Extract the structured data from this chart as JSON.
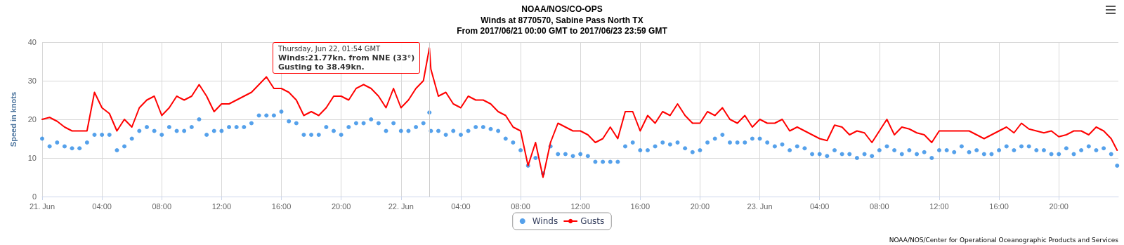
{
  "chart_data": {
    "type": "line",
    "title": "NOAA/NOS/CO-OPS",
    "subtitle": "Winds at 8770570, Sabine Pass North TX\nFrom 2017/06/21 00:00 GMT to 2017/06/23 23:59 GMT",
    "ylabel": "Speed in knots",
    "x": [
      "2017-06-21T00:00",
      "2017-06-21T00:30",
      "2017-06-21T01:00",
      "2017-06-21T01:30",
      "2017-06-21T02:00",
      "2017-06-21T02:30",
      "2017-06-21T03:00",
      "2017-06-21T03:30",
      "2017-06-21T04:00",
      "2017-06-21T04:30",
      "2017-06-21T05:00",
      "2017-06-21T05:30",
      "2017-06-21T06:00",
      "2017-06-21T06:30",
      "2017-06-21T07:00",
      "2017-06-21T07:30",
      "2017-06-21T08:00",
      "2017-06-21T08:30",
      "2017-06-21T09:00",
      "2017-06-21T09:30",
      "2017-06-21T10:00",
      "2017-06-21T10:30",
      "2017-06-21T11:00",
      "2017-06-21T11:30",
      "2017-06-21T12:00",
      "2017-06-21T12:30",
      "2017-06-21T13:00",
      "2017-06-21T13:30",
      "2017-06-21T14:00",
      "2017-06-21T14:30",
      "2017-06-21T15:00",
      "2017-06-21T15:30",
      "2017-06-21T16:00",
      "2017-06-21T16:30",
      "2017-06-21T17:00",
      "2017-06-21T17:30",
      "2017-06-21T18:00",
      "2017-06-21T18:30",
      "2017-06-21T19:00",
      "2017-06-21T19:30",
      "2017-06-21T20:00",
      "2017-06-21T20:30",
      "2017-06-21T21:00",
      "2017-06-21T21:30",
      "2017-06-21T22:00",
      "2017-06-21T22:30",
      "2017-06-21T23:00",
      "2017-06-21T23:30",
      "2017-06-22T00:00",
      "2017-06-22T00:30",
      "2017-06-22T01:00",
      "2017-06-22T01:30",
      "2017-06-22T01:54",
      "2017-06-22T02:00",
      "2017-06-22T02:30",
      "2017-06-22T03:00",
      "2017-06-22T03:30",
      "2017-06-22T04:00",
      "2017-06-22T04:30",
      "2017-06-22T05:00",
      "2017-06-22T05:30",
      "2017-06-22T06:00",
      "2017-06-22T06:30",
      "2017-06-22T07:00",
      "2017-06-22T07:30",
      "2017-06-22T08:00",
      "2017-06-22T08:30",
      "2017-06-22T09:00",
      "2017-06-22T09:30",
      "2017-06-22T10:00",
      "2017-06-22T10:30",
      "2017-06-22T11:00",
      "2017-06-22T11:30",
      "2017-06-22T12:00",
      "2017-06-22T12:30",
      "2017-06-22T13:00",
      "2017-06-22T13:30",
      "2017-06-22T14:00",
      "2017-06-22T14:30",
      "2017-06-22T15:00",
      "2017-06-22T15:30",
      "2017-06-22T16:00",
      "2017-06-22T16:30",
      "2017-06-22T17:00",
      "2017-06-22T17:30",
      "2017-06-22T18:00",
      "2017-06-22T18:30",
      "2017-06-22T19:00",
      "2017-06-22T19:30",
      "2017-06-22T20:00",
      "2017-06-22T20:30",
      "2017-06-22T21:00",
      "2017-06-22T21:30",
      "2017-06-22T22:00",
      "2017-06-22T22:30",
      "2017-06-22T23:00",
      "2017-06-22T23:30",
      "2017-06-23T00:00",
      "2017-06-23T00:30",
      "2017-06-23T01:00",
      "2017-06-23T01:30",
      "2017-06-23T02:00",
      "2017-06-23T02:30",
      "2017-06-23T03:00",
      "2017-06-23T03:30",
      "2017-06-23T04:00",
      "2017-06-23T04:30",
      "2017-06-23T05:00",
      "2017-06-23T05:30",
      "2017-06-23T06:00",
      "2017-06-23T06:30",
      "2017-06-23T07:00",
      "2017-06-23T07:30",
      "2017-06-23T08:00",
      "2017-06-23T08:30",
      "2017-06-23T09:00",
      "2017-06-23T09:30",
      "2017-06-23T10:00",
      "2017-06-23T10:30",
      "2017-06-23T11:00",
      "2017-06-23T11:30",
      "2017-06-23T12:00",
      "2017-06-23T12:30",
      "2017-06-23T13:00",
      "2017-06-23T13:30",
      "2017-06-23T14:00",
      "2017-06-23T14:30",
      "2017-06-23T15:00",
      "2017-06-23T15:30",
      "2017-06-23T16:00",
      "2017-06-23T16:30",
      "2017-06-23T17:00",
      "2017-06-23T17:30",
      "2017-06-23T18:00",
      "2017-06-23T18:30",
      "2017-06-23T19:00",
      "2017-06-23T19:30",
      "2017-06-23T20:00",
      "2017-06-23T20:30",
      "2017-06-23T21:00",
      "2017-06-23T21:30",
      "2017-06-23T22:00",
      "2017-06-23T22:30",
      "2017-06-23T23:00",
      "2017-06-23T23:30",
      "2017-06-23T23:54"
    ],
    "series": [
      {
        "name": "Winds",
        "type": "scatter",
        "marker": "circle",
        "color": "#2b8ae6",
        "values": [
          15,
          13,
          14,
          13,
          12.5,
          12.5,
          14,
          16,
          16,
          16,
          12,
          13,
          15,
          17,
          18,
          17,
          16,
          18,
          17,
          17,
          18,
          20,
          16,
          17,
          17,
          18,
          18,
          18,
          19,
          21,
          21,
          21,
          22,
          19.5,
          19,
          16,
          16,
          16,
          18,
          17,
          16,
          18,
          19,
          19,
          20,
          19,
          17,
          19,
          17,
          17,
          18,
          19,
          21.77,
          17,
          17,
          16,
          17,
          16,
          17,
          18,
          18,
          17.5,
          17,
          15,
          14,
          12,
          8,
          10,
          6,
          13,
          11,
          11,
          10.5,
          11,
          10.5,
          9,
          9,
          9,
          9,
          13,
          14,
          12,
          12,
          13,
          14,
          13.5,
          14,
          12.5,
          11.5,
          12,
          14,
          15,
          16,
          14,
          14,
          14,
          15,
          15,
          14,
          13,
          13.5,
          12,
          13,
          12.5,
          11,
          11,
          10.5,
          12,
          11,
          11,
          10,
          11,
          10.5,
          12,
          13,
          12,
          11,
          12,
          11,
          11.5,
          10,
          12,
          12,
          11.5,
          13,
          11.5,
          12,
          11,
          11,
          12,
          13,
          12,
          13,
          13,
          12,
          12,
          11,
          11,
          12.5,
          11,
          12,
          13,
          12,
          12.5,
          11,
          8
        ]
      },
      {
        "name": "Gusts",
        "marker": "none",
        "color": "#ff0000",
        "values": [
          20,
          20.5,
          19.5,
          18,
          17,
          17,
          17,
          27,
          23,
          21.5,
          17,
          20,
          18,
          23,
          25,
          26,
          21,
          23,
          26,
          25,
          26,
          29,
          26,
          22,
          24,
          24,
          25,
          26,
          27,
          29,
          31,
          28,
          28,
          27,
          25,
          21,
          22,
          21,
          23,
          26,
          26,
          25,
          28,
          29,
          28,
          26,
          23,
          28,
          23,
          25,
          28,
          30,
          38.49,
          33,
          26,
          27,
          24,
          23,
          26,
          25,
          25,
          24,
          22,
          21,
          18,
          17,
          8,
          14,
          5,
          14,
          19,
          18,
          17,
          17,
          16,
          14,
          15,
          18,
          15,
          22,
          22,
          17,
          21,
          19,
          22,
          21,
          24,
          21,
          19,
          19,
          22,
          21,
          23,
          20,
          19,
          21,
          18,
          20,
          19,
          19,
          20,
          17,
          18,
          17,
          16,
          15,
          14.5,
          18.5,
          18,
          16,
          17,
          16.5,
          14,
          17,
          20,
          16,
          18,
          17.5,
          16.5,
          16,
          14,
          17,
          17,
          17,
          17,
          17,
          16,
          15,
          16,
          17,
          18,
          16.5,
          19,
          17.5,
          17,
          16.5,
          17,
          15.5,
          16,
          17,
          17,
          16,
          18,
          17,
          15,
          12
        ]
      }
    ],
    "xlim": [
      "2017-06-21T00:00",
      "2017-06-23T23:59"
    ],
    "xticks": [
      {
        "value": "2017-06-21T00:00",
        "label": "21. Jun"
      },
      {
        "value": "2017-06-21T04:00",
        "label": "04:00"
      },
      {
        "value": "2017-06-21T08:00",
        "label": "08:00"
      },
      {
        "value": "2017-06-21T12:00",
        "label": "12:00"
      },
      {
        "value": "2017-06-21T16:00",
        "label": "16:00"
      },
      {
        "value": "2017-06-21T20:00",
        "label": "20:00"
      },
      {
        "value": "2017-06-22T00:00",
        "label": "22. Jun"
      },
      {
        "value": "2017-06-22T04:00",
        "label": "04:00"
      },
      {
        "value": "2017-06-22T08:00",
        "label": "08:00"
      },
      {
        "value": "2017-06-22T12:00",
        "label": "12:00"
      },
      {
        "value": "2017-06-22T16:00",
        "label": "16:00"
      },
      {
        "value": "2017-06-22T20:00",
        "label": "20:00"
      },
      {
        "value": "2017-06-23T00:00",
        "label": "23. Jun"
      },
      {
        "value": "2017-06-23T04:00",
        "label": "04:00"
      },
      {
        "value": "2017-06-23T08:00",
        "label": "08:00"
      },
      {
        "value": "2017-06-23T12:00",
        "label": "12:00"
      },
      {
        "value": "2017-06-23T16:00",
        "label": "16:00"
      },
      {
        "value": "2017-06-23T20:00",
        "label": "20:00"
      }
    ],
    "ylim": [
      0,
      40
    ],
    "yticks": [
      0,
      10,
      20,
      30,
      40
    ],
    "grid": true,
    "legend": "bottom",
    "ref_lines": [
      {
        "axis": "x",
        "value": "2017-06-22T01:54",
        "color": "#cccccc"
      }
    ],
    "annotations": [
      "Thursday, Jun 22, 01:54 GMT",
      "Winds:21.77kn. from NNE (33°)",
      "Gusting to 38.49kn.",
      "NOAA/NOS/Center for Operational Oceanographic Products and Services"
    ]
  }
}
